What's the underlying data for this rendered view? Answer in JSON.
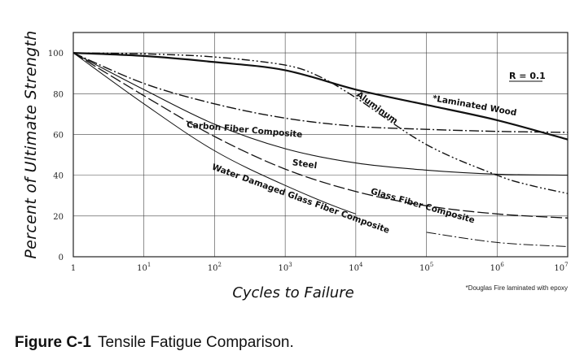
{
  "chart_data": {
    "type": "line",
    "title": "",
    "xlabel": "Cycles to Failure",
    "ylabel": "Percent of Ultimate Strength",
    "xscale": "log",
    "xlim": [
      1,
      10000000
    ],
    "ylim": [
      0,
      110
    ],
    "grid": true,
    "x_ticks": [
      {
        "value": 1,
        "base": "1",
        "exp": ""
      },
      {
        "value": 10,
        "base": "10",
        "exp": "1"
      },
      {
        "value": 100,
        "base": "10",
        "exp": "2"
      },
      {
        "value": 1000,
        "base": "10",
        "exp": "3"
      },
      {
        "value": 10000,
        "base": "10",
        "exp": "4"
      },
      {
        "value": 100000,
        "base": "10",
        "exp": "5"
      },
      {
        "value": 1000000,
        "base": "10",
        "exp": "6"
      },
      {
        "value": 10000000,
        "base": "10",
        "exp": "7"
      }
    ],
    "y_ticks": [
      "0",
      "20",
      "40",
      "60",
      "80",
      "100"
    ],
    "annotation": "R = 0.1",
    "footnote": "*Douglas Fire laminated with epoxy",
    "series": [
      {
        "name": "*Laminated Wood",
        "style": "solid",
        "width": 2.2,
        "x": [
          1,
          10,
          100,
          1000,
          10000,
          100000,
          1000000,
          10000000
        ],
        "y": [
          100,
          98.5,
          95.5,
          91.5,
          82,
          74.5,
          67,
          57.5
        ]
      },
      {
        "name": "Aluminum",
        "style": "dashdotdot",
        "width": 1.4,
        "x": [
          1,
          10,
          100,
          1000,
          3000,
          10000,
          100000,
          1000000,
          3000000,
          10000000
        ],
        "y": [
          100,
          99.5,
          98,
          94,
          88.5,
          78,
          55,
          40,
          35,
          31
        ]
      },
      {
        "name": "Carbon Fiber Composite",
        "style": "dashdot",
        "width": 1.4,
        "x": [
          1,
          10,
          100,
          1000,
          10000,
          100000,
          1000000,
          10000000
        ],
        "y": [
          100,
          85,
          75,
          68,
          64,
          62.5,
          61.5,
          61
        ]
      },
      {
        "name": "Steel",
        "style": "solid",
        "width": 1.1,
        "x": [
          1,
          10,
          100,
          1000,
          10000,
          100000,
          1000000,
          10000000
        ],
        "y": [
          100,
          82,
          65,
          53,
          46,
          42.5,
          40.5,
          40
        ]
      },
      {
        "name": "Glass Fiber Composite",
        "style": "longdash",
        "width": 1.3,
        "x": [
          1,
          10,
          100,
          1000,
          10000,
          100000,
          1000000,
          10000000
        ],
        "y": [
          100,
          79,
          59,
          43,
          32,
          25,
          21,
          19
        ]
      },
      {
        "name": "Water Damaged Glass Fiber Composite",
        "style": "solid-then-dashdot",
        "width": 1.0,
        "x": [
          1,
          10,
          100,
          1000,
          10000,
          100000,
          1000000,
          10000000
        ],
        "y": [
          100,
          75,
          52,
          35,
          21,
          12,
          7,
          5
        ]
      }
    ],
    "label_placements": [
      {
        "text": "*Laminated Wood",
        "x": 120000,
        "y": 76.5,
        "rotate": 10
      },
      {
        "text": "Aluminum",
        "x": 10000,
        "y": 79,
        "rotate": 36
      },
      {
        "text": "Carbon Fiber Composite",
        "x": 40,
        "y": 63.5,
        "rotate": 5
      },
      {
        "text": "Steel",
        "x": 1250,
        "y": 45,
        "rotate": 8
      },
      {
        "text": "Glass Fiber Composite",
        "x": 16000,
        "y": 31,
        "rotate": 16
      },
      {
        "text": "Water Damaged Glass Fiber Composite",
        "x": 90,
        "y": 43,
        "rotate": 20
      }
    ]
  },
  "caption": {
    "figure_label": "Figure C-1",
    "text": "Tensile Fatigue Comparison."
  }
}
